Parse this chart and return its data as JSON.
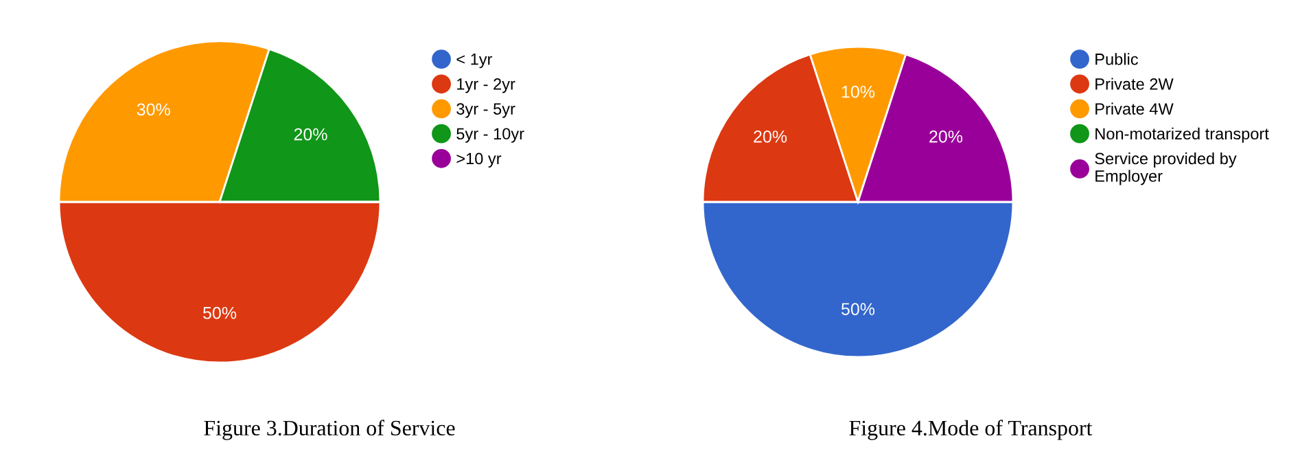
{
  "chart_data": [
    {
      "type": "pie",
      "title": "Figure 3.Duration of Service",
      "categories": [
        "< 1yr",
        "1yr - 2yr",
        "3yr - 5yr",
        "5yr - 10yr",
        ">10 yr"
      ],
      "values": [
        0,
        50,
        30,
        20,
        0
      ],
      "colors": [
        "#3366cc",
        "#dc3912",
        "#ff9900",
        "#109618",
        "#990099"
      ],
      "value_labels": [
        null,
        "50%",
        "30%",
        "20%",
        null
      ],
      "legend": "right"
    },
    {
      "type": "pie",
      "title": "Figure 4.Mode of Transport",
      "categories": [
        "Public",
        "Private 2W",
        "Private 4W",
        "Non-motarized transport",
        "Service provided by Employer"
      ],
      "values": [
        50,
        20,
        10,
        0,
        20
      ],
      "colors": [
        "#3366cc",
        "#dc3912",
        "#ff9900",
        "#109618",
        "#990099"
      ],
      "value_labels": [
        "50%",
        "20%",
        "10%",
        null,
        "20%"
      ],
      "legend": "right"
    }
  ]
}
